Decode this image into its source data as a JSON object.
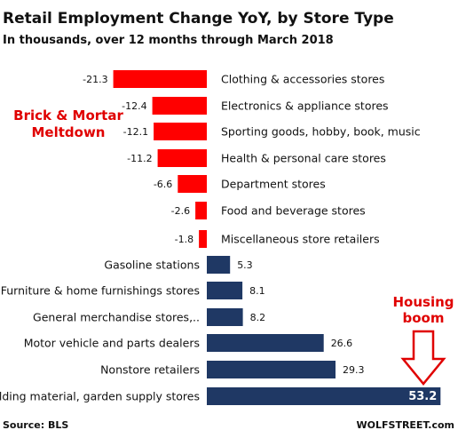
{
  "chart_data": {
    "type": "bar",
    "orientation": "horizontal",
    "title": "Retail Employment Change YoY, by Store Type",
    "subtitle": "In thousands, over 12 months through March 2018",
    "categories": [
      "Clothing & accessories stores",
      "Electronics & appliance stores",
      "Sporting goods, hobby, book, music",
      "Health & personal care stores",
      "Department stores",
      "Food and beverage stores",
      "Miscellaneous store retailers",
      "Gasoline stations",
      "Furniture & home furnishings stores",
      "General merchandise stores,..",
      "Motor vehicle and parts dealers",
      "Nonstore retailers",
      "Building material, garden supply stores"
    ],
    "values": [
      -21.3,
      -12.4,
      -12.1,
      -11.2,
      -6.6,
      -2.6,
      -1.8,
      5.3,
      8.1,
      8.2,
      26.6,
      29.3,
      53.2
    ],
    "value_labels": [
      "-21.3",
      "-12.4",
      "-12.1",
      "-11.2",
      "-6.6",
      "-2.6",
      "-1.8",
      "5.3",
      "8.1",
      "8.2",
      "26.6",
      "29.3",
      "53.2"
    ],
    "colors": {
      "negative": "#ff0000",
      "positive": "#1f3864",
      "accent": "#e00000"
    },
    "annotations": [
      {
        "text_lines": [
          "Brick & Mortar",
          "Meltdown"
        ],
        "color": "#e00000"
      },
      {
        "text_lines": [
          "Housing",
          "boom"
        ],
        "color": "#e00000",
        "arrow": "down"
      }
    ],
    "source": "Source: BLS",
    "credit": "WOLFSTREET.com",
    "grid": false,
    "legend": "none"
  }
}
